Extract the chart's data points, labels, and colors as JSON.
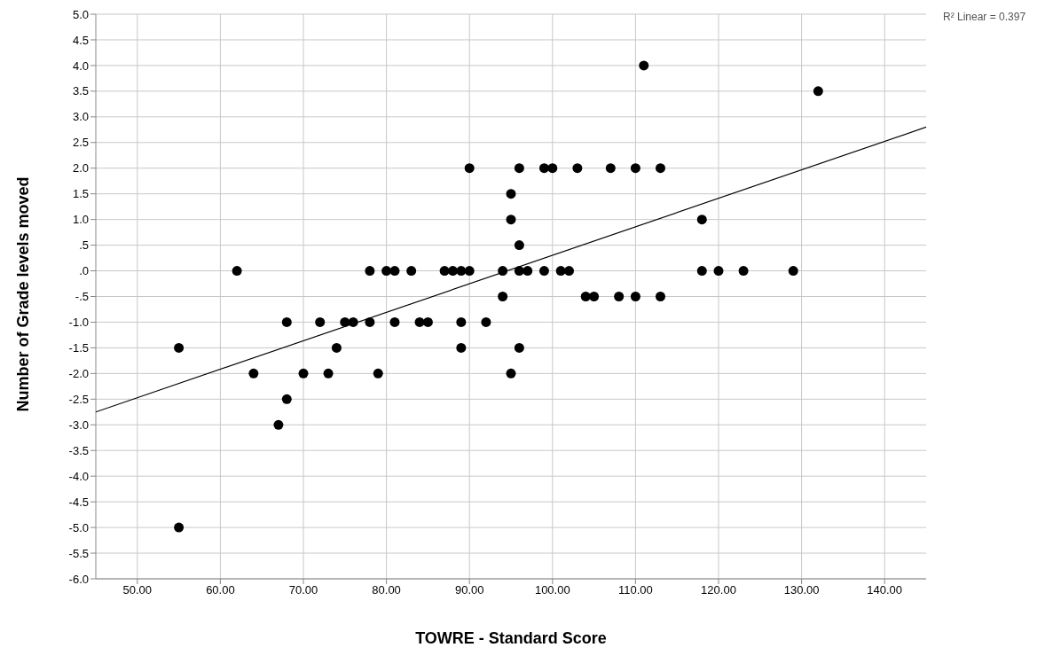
{
  "chart_data": {
    "type": "scatter",
    "xlabel": "TOWRE - Standard Score",
    "ylabel": "Number of Grade levels moved",
    "annotations": [
      "R² Linear = 0.397"
    ],
    "xlim": [
      45,
      145
    ],
    "xticks": [
      {
        "value": 50,
        "label": "50.00"
      },
      {
        "value": 60,
        "label": "60.00"
      },
      {
        "value": 70,
        "label": "70.00"
      },
      {
        "value": 80,
        "label": "80.00"
      },
      {
        "value": 90,
        "label": "90.00"
      },
      {
        "value": 100,
        "label": "100.00"
      },
      {
        "value": 110,
        "label": "110.00"
      },
      {
        "value": 120,
        "label": "120.00"
      },
      {
        "value": 130,
        "label": "130.00"
      },
      {
        "value": 140,
        "label": "140.00"
      }
    ],
    "ylim": [
      -6,
      5
    ],
    "yticks": [
      {
        "value": -6,
        "label": "-6.0"
      },
      {
        "value": -5.5,
        "label": "-5.5"
      },
      {
        "value": -5,
        "label": "-5.0"
      },
      {
        "value": -4.5,
        "label": "-4.5"
      },
      {
        "value": -4,
        "label": "-4.0"
      },
      {
        "value": -3.5,
        "label": "-3.5"
      },
      {
        "value": -3,
        "label": "-3.0"
      },
      {
        "value": -2.5,
        "label": "-2.5"
      },
      {
        "value": -2,
        "label": "-2.0"
      },
      {
        "value": -1.5,
        "label": "-1.5"
      },
      {
        "value": -1,
        "label": "-1.0"
      },
      {
        "value": -0.5,
        "label": "-.5"
      },
      {
        "value": 0,
        "label": ".0"
      },
      {
        "value": 0.5,
        "label": ".5"
      },
      {
        "value": 1,
        "label": "1.0"
      },
      {
        "value": 1.5,
        "label": "1.5"
      },
      {
        "value": 2,
        "label": "2.0"
      },
      {
        "value": 2.5,
        "label": "2.5"
      },
      {
        "value": 3,
        "label": "3.0"
      },
      {
        "value": 3.5,
        "label": "3.5"
      },
      {
        "value": 4,
        "label": "4.0"
      },
      {
        "value": 4.5,
        "label": "4.5"
      },
      {
        "value": 5,
        "label": "5.0"
      }
    ],
    "grid": true,
    "marker": "circle",
    "series": [
      {
        "color": "#000000",
        "x": [
          62,
          55,
          55,
          64,
          68,
          68,
          67,
          70,
          72,
          73,
          74,
          75,
          76,
          78,
          78,
          79,
          80,
          81,
          81,
          83,
          84,
          85,
          87,
          88,
          89,
          89,
          89,
          90,
          90,
          92,
          94,
          94,
          95,
          95,
          95,
          96,
          96,
          96,
          96,
          97,
          99,
          99,
          100,
          101,
          102,
          103,
          104,
          105,
          107,
          108,
          110,
          110,
          111,
          113,
          113,
          118,
          118,
          120,
          123,
          129,
          132
        ],
        "values": [
          0,
          -1.5,
          -5,
          -2,
          -1,
          -2.5,
          -3,
          -2,
          -1,
          -2,
          -1.5,
          -1,
          -1,
          0,
          -1,
          -2,
          0,
          0,
          -1,
          0,
          -1,
          -1,
          0,
          0,
          0,
          -1,
          -1.5,
          0,
          2,
          -1,
          0,
          -0.5,
          1.5,
          1,
          -2,
          2,
          0.5,
          0,
          -1.5,
          0,
          0,
          2,
          2,
          0,
          0,
          2,
          -0.5,
          -0.5,
          2,
          -0.5,
          2,
          -0.5,
          4,
          2,
          -0.5,
          1,
          0,
          0,
          0,
          0,
          3.5
        ]
      },
      {
        "type": "line",
        "marker": "none",
        "color": "#000000",
        "x": [
          45,
          145
        ],
        "values": [
          -2.75,
          2.8
        ]
      }
    ]
  }
}
